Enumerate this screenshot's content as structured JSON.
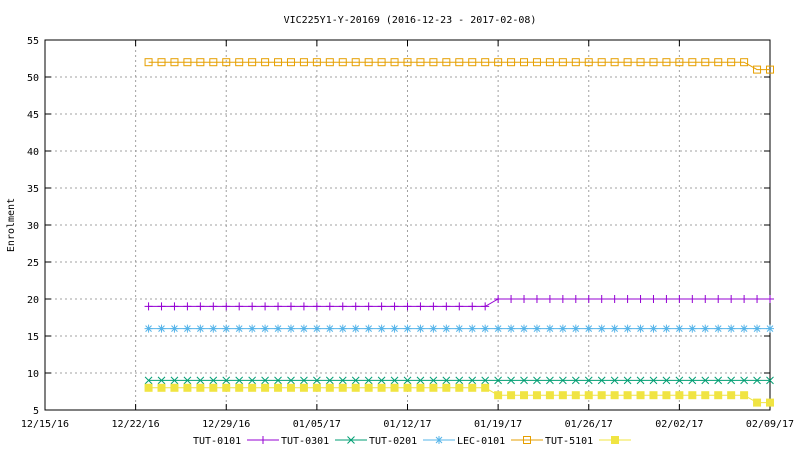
{
  "chart_data": {
    "type": "line",
    "title": "VIC225Y1-Y-20169 (2016-12-23 - 2017-02-08)",
    "xlabel": "",
    "ylabel": "Enrolment",
    "ylim": [
      5,
      55
    ],
    "yticks": [
      5,
      10,
      15,
      20,
      25,
      30,
      35,
      40,
      45,
      50,
      55
    ],
    "xlim": [
      "2016-12-15",
      "2017-02-09"
    ],
    "xticks": [
      "12/15/16",
      "12/22/16",
      "12/29/16",
      "01/05/17",
      "01/12/17",
      "01/19/17",
      "01/26/17",
      "02/02/17",
      "02/09/17"
    ],
    "grid": true,
    "legend_position": "bottom",
    "start_date": "2016-12-23",
    "series": [
      {
        "name": "TUT-0101",
        "color": "#9400d3",
        "marker": "plus",
        "steps": [
          {
            "from": "2016-12-23",
            "to": "2017-01-18",
            "value": 19
          },
          {
            "from": "2017-01-19",
            "to": "2017-02-09",
            "value": 20
          }
        ]
      },
      {
        "name": "TUT-0301",
        "color": "#009e73",
        "marker": "cross",
        "steps": [
          {
            "from": "2016-12-23",
            "to": "2017-02-09",
            "value": 9
          }
        ]
      },
      {
        "name": "TUT-0201",
        "color": "#56b4e9",
        "marker": "star",
        "steps": [
          {
            "from": "2016-12-23",
            "to": "2017-02-09",
            "value": 16
          }
        ]
      },
      {
        "name": "LEC-0101",
        "color": "#e69f00",
        "marker": "open-square",
        "steps": [
          {
            "from": "2016-12-23",
            "to": "2017-02-07",
            "value": 52
          },
          {
            "from": "2017-02-08",
            "to": "2017-02-09",
            "value": 51
          }
        ]
      },
      {
        "name": "TUT-5101",
        "color": "#f0e442",
        "marker": "filled-square",
        "steps": [
          {
            "from": "2016-12-23",
            "to": "2017-01-18",
            "value": 8
          },
          {
            "from": "2017-01-19",
            "to": "2017-02-07",
            "value": 7
          },
          {
            "from": "2017-02-08",
            "to": "2017-02-09",
            "value": 6
          }
        ]
      }
    ]
  }
}
